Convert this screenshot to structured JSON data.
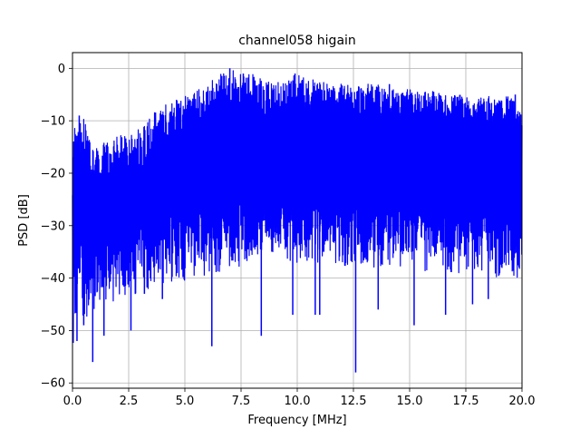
{
  "chart_data": {
    "type": "line",
    "title": "channel058 higain",
    "xlabel": "Frequency [MHz]",
    "ylabel": "PSD [dB]",
    "xlim": [
      0,
      20
    ],
    "ylim": [
      -61,
      3
    ],
    "grid": true,
    "line_color": "#0000ff",
    "x_ticks": [
      0,
      2.5,
      5,
      7.5,
      10,
      12.5,
      15,
      17.5,
      20
    ],
    "x_tick_labels": [
      "0.0",
      "2.5",
      "5.0",
      "7.5",
      "10.0",
      "12.5",
      "15.0",
      "17.5",
      "20.0"
    ],
    "y_ticks": [
      0,
      -10,
      -20,
      -30,
      -40,
      -50,
      -60
    ],
    "y_tick_labels": [
      "0",
      "−10",
      "−20",
      "−30",
      "−40",
      "−50",
      "−60"
    ],
    "series": [
      {
        "envelope": {
          "x": [
            0.0,
            0.5,
            1.0,
            1.5,
            2.0,
            2.5,
            3.0,
            3.5,
            4.0,
            4.5,
            5.0,
            5.5,
            6.0,
            6.5,
            7.0,
            7.5,
            8.0,
            8.5,
            9.0,
            9.5,
            10.0,
            10.5,
            11.0,
            11.5,
            12.0,
            12.5,
            13.0,
            13.5,
            14.0,
            14.5,
            15.0,
            15.5,
            16.0,
            16.5,
            17.0,
            17.5,
            18.0,
            18.5,
            19.0,
            19.5,
            20.0
          ],
          "upper": [
            -11,
            -9,
            -15,
            -14,
            -13,
            -12,
            -11,
            -9,
            -7,
            -6,
            -5,
            -4,
            -3,
            -1,
            0,
            -1,
            -1,
            -2,
            -2,
            -2,
            -1,
            -2,
            -2,
            -3,
            -3,
            -3,
            -3,
            -3,
            -4,
            -4,
            -4,
            -4,
            -4,
            -5,
            -5,
            -5,
            -6,
            -5,
            -6,
            -5,
            -9
          ],
          "lower": [
            -50,
            -45,
            -43,
            -42,
            -41,
            -41,
            -40,
            -40,
            -39,
            -38,
            -38,
            -37,
            -37,
            -36,
            -35,
            -35,
            -34,
            -34,
            -34,
            -34,
            -34,
            -34,
            -34,
            -34,
            -35,
            -35,
            -35,
            -35,
            -35,
            -35,
            -35,
            -36,
            -36,
            -36,
            -36,
            -36,
            -36,
            -37,
            -37,
            -37,
            -37
          ],
          "dense_upper": [
            -30,
            -25,
            -24,
            -22,
            -21,
            -20,
            -19,
            -18,
            -16,
            -14,
            -13,
            -12,
            -11,
            -10,
            -9,
            -9,
            -9,
            -9,
            -9,
            -9,
            -9,
            -9,
            -9,
            -9,
            -9,
            -9,
            -9,
            -9,
            -10,
            -10,
            -10,
            -10,
            -10,
            -10,
            -10,
            -10,
            -11,
            -11,
            -11,
            -11,
            -11
          ],
          "dense_lower": [
            -35,
            -33,
            -32,
            -31,
            -30,
            -30,
            -29,
            -29,
            -28,
            -28,
            -27,
            -27,
            -27,
            -27,
            -26,
            -26,
            -26,
            -26,
            -26,
            -26,
            -26,
            -26,
            -26,
            -26,
            -26,
            -26,
            -27,
            -27,
            -27,
            -27,
            -27,
            -27,
            -27,
            -28,
            -28,
            -28,
            -28,
            -28,
            -28,
            -28,
            -28
          ]
        },
        "peaks": [
          {
            "x": 0.3,
            "y": -9
          },
          {
            "x": 7.0,
            "y": 0
          },
          {
            "x": 7.6,
            "y": -1
          },
          {
            "x": 9.9,
            "y": -1
          },
          {
            "x": 14.1,
            "y": -3
          },
          {
            "x": 19.7,
            "y": -5
          }
        ],
        "dips": [
          {
            "x": 0.2,
            "y": -52
          },
          {
            "x": 0.5,
            "y": -49
          },
          {
            "x": 0.9,
            "y": -56
          },
          {
            "x": 1.4,
            "y": -51
          },
          {
            "x": 2.6,
            "y": -50
          },
          {
            "x": 3.2,
            "y": -43
          },
          {
            "x": 4.0,
            "y": -44
          },
          {
            "x": 6.2,
            "y": -53
          },
          {
            "x": 8.4,
            "y": -51
          },
          {
            "x": 9.8,
            "y": -47
          },
          {
            "x": 10.8,
            "y": -47
          },
          {
            "x": 11.0,
            "y": -47
          },
          {
            "x": 12.6,
            "y": -58
          },
          {
            "x": 13.6,
            "y": -46
          },
          {
            "x": 15.2,
            "y": -49
          },
          {
            "x": 16.6,
            "y": -47
          },
          {
            "x": 17.8,
            "y": -45
          },
          {
            "x": 18.5,
            "y": -44
          }
        ]
      }
    ]
  }
}
